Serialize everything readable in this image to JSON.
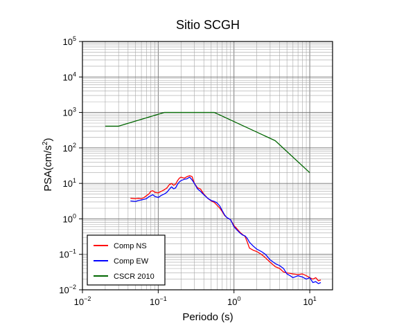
{
  "chart_data": {
    "type": "line",
    "title": "Sitio SCGH",
    "xlabel": "Periodo (s)",
    "ylabel_main": "PSA(cm/s",
    "ylabel_sup": "2",
    "ylabel_end": ")",
    "x_scale": "log",
    "y_scale": "log",
    "xlim": [
      0.01,
      20
    ],
    "ylim": [
      0.01,
      100000
    ],
    "grid": true,
    "legend_position": "bottom-left",
    "x_ticks": [
      {
        "base": "10",
        "exp": "−2",
        "value": 0.01
      },
      {
        "base": "10",
        "exp": "−1",
        "value": 0.1
      },
      {
        "base": "10",
        "exp": "0",
        "value": 1
      },
      {
        "base": "10",
        "exp": "1",
        "value": 10
      }
    ],
    "y_ticks": [
      {
        "base": "10",
        "exp": "−2",
        "value": 0.01
      },
      {
        "base": "10",
        "exp": "−1",
        "value": 0.1
      },
      {
        "base": "10",
        "exp": "0",
        "value": 1
      },
      {
        "base": "10",
        "exp": "1",
        "value": 10
      },
      {
        "base": "10",
        "exp": "2",
        "value": 100
      },
      {
        "base": "10",
        "exp": "3",
        "value": 1000
      },
      {
        "base": "10",
        "exp": "4",
        "value": 10000
      },
      {
        "base": "10",
        "exp": "5",
        "value": 100000
      }
    ],
    "series": [
      {
        "name": "Comp NS",
        "color": "#ff0000",
        "points": [
          [
            0.043,
            3.8
          ],
          [
            0.05,
            3.7
          ],
          [
            0.055,
            3.8
          ],
          [
            0.06,
            3.7
          ],
          [
            0.065,
            4.0
          ],
          [
            0.07,
            4.5
          ],
          [
            0.075,
            5.0
          ],
          [
            0.08,
            6.0
          ],
          [
            0.085,
            6.2
          ],
          [
            0.09,
            5.6
          ],
          [
            0.1,
            5.4
          ],
          [
            0.11,
            6.0
          ],
          [
            0.12,
            6.6
          ],
          [
            0.13,
            7.4
          ],
          [
            0.14,
            9.2
          ],
          [
            0.15,
            10.0
          ],
          [
            0.16,
            8.8
          ],
          [
            0.17,
            9.6
          ],
          [
            0.18,
            12.0
          ],
          [
            0.19,
            14.0
          ],
          [
            0.2,
            15.0
          ],
          [
            0.22,
            14.0
          ],
          [
            0.24,
            15.5
          ],
          [
            0.26,
            16.5
          ],
          [
            0.28,
            15.5
          ],
          [
            0.3,
            10.0
          ],
          [
            0.33,
            7.5
          ],
          [
            0.36,
            7.0
          ],
          [
            0.4,
            5.0
          ],
          [
            0.45,
            3.8
          ],
          [
            0.5,
            3.2
          ],
          [
            0.55,
            2.9
          ],
          [
            0.6,
            2.4
          ],
          [
            0.65,
            2.0
          ],
          [
            0.7,
            1.6
          ],
          [
            0.75,
            1.25
          ],
          [
            0.8,
            1.1
          ],
          [
            0.9,
            0.95
          ],
          [
            1.0,
            0.65
          ],
          [
            1.1,
            0.52
          ],
          [
            1.2,
            0.42
          ],
          [
            1.3,
            0.36
          ],
          [
            1.4,
            0.32
          ],
          [
            1.5,
            0.22
          ],
          [
            1.6,
            0.15
          ],
          [
            1.8,
            0.13
          ],
          [
            2.0,
            0.12
          ],
          [
            2.3,
            0.1
          ],
          [
            2.6,
            0.08
          ],
          [
            3.0,
            0.06
          ],
          [
            3.5,
            0.045
          ],
          [
            4.0,
            0.04
          ],
          [
            4.5,
            0.032
          ],
          [
            5.0,
            0.03
          ],
          [
            5.5,
            0.029
          ],
          [
            6.0,
            0.028
          ],
          [
            7.0,
            0.027
          ],
          [
            8.0,
            0.028
          ],
          [
            9.0,
            0.025
          ],
          [
            10.0,
            0.022
          ],
          [
            11.0,
            0.02
          ],
          [
            12.0,
            0.022
          ],
          [
            13.0,
            0.018
          ],
          [
            14.0,
            0.019
          ]
        ]
      },
      {
        "name": "Comp EW",
        "color": "#0000ff",
        "points": [
          [
            0.043,
            3.2
          ],
          [
            0.05,
            3.1
          ],
          [
            0.055,
            3.3
          ],
          [
            0.06,
            3.4
          ],
          [
            0.07,
            3.7
          ],
          [
            0.075,
            4.2
          ],
          [
            0.08,
            4.5
          ],
          [
            0.085,
            4.8
          ],
          [
            0.09,
            4.3
          ],
          [
            0.1,
            4.0
          ],
          [
            0.11,
            4.6
          ],
          [
            0.12,
            5.0
          ],
          [
            0.13,
            5.6
          ],
          [
            0.14,
            6.8
          ],
          [
            0.15,
            8.0
          ],
          [
            0.16,
            7.0
          ],
          [
            0.17,
            7.5
          ],
          [
            0.18,
            9.5
          ],
          [
            0.19,
            11.0
          ],
          [
            0.2,
            12.0
          ],
          [
            0.22,
            13.0
          ],
          [
            0.24,
            13.5
          ],
          [
            0.26,
            15.0
          ],
          [
            0.28,
            12.5
          ],
          [
            0.3,
            10.0
          ],
          [
            0.33,
            7.0
          ],
          [
            0.36,
            6.0
          ],
          [
            0.4,
            4.8
          ],
          [
            0.45,
            3.8
          ],
          [
            0.5,
            3.3
          ],
          [
            0.55,
            3.1
          ],
          [
            0.6,
            2.8
          ],
          [
            0.65,
            2.3
          ],
          [
            0.7,
            1.7
          ],
          [
            0.75,
            1.3
          ],
          [
            0.8,
            1.1
          ],
          [
            0.9,
            0.95
          ],
          [
            1.0,
            0.6
          ],
          [
            1.1,
            0.48
          ],
          [
            1.2,
            0.4
          ],
          [
            1.3,
            0.35
          ],
          [
            1.4,
            0.33
          ],
          [
            1.5,
            0.28
          ],
          [
            1.6,
            0.22
          ],
          [
            1.8,
            0.17
          ],
          [
            2.0,
            0.14
          ],
          [
            2.3,
            0.12
          ],
          [
            2.6,
            0.1
          ],
          [
            3.0,
            0.07
          ],
          [
            3.5,
            0.055
          ],
          [
            4.0,
            0.048
          ],
          [
            4.5,
            0.04
          ],
          [
            5.0,
            0.028
          ],
          [
            5.5,
            0.025
          ],
          [
            6.0,
            0.022
          ],
          [
            7.0,
            0.025
          ],
          [
            8.0,
            0.023
          ],
          [
            9.0,
            0.02
          ],
          [
            10.0,
            0.022
          ],
          [
            11.0,
            0.016
          ],
          [
            12.0,
            0.017
          ],
          [
            13.0,
            0.015
          ],
          [
            14.0,
            0.016
          ]
        ]
      },
      {
        "name": "CSCR 2010",
        "color": "#006600",
        "points": [
          [
            0.02,
            410
          ],
          [
            0.03,
            410
          ],
          [
            0.12,
            1000
          ],
          [
            0.55,
            1000
          ],
          [
            3.5,
            160
          ],
          [
            10.0,
            20
          ]
        ]
      }
    ]
  }
}
